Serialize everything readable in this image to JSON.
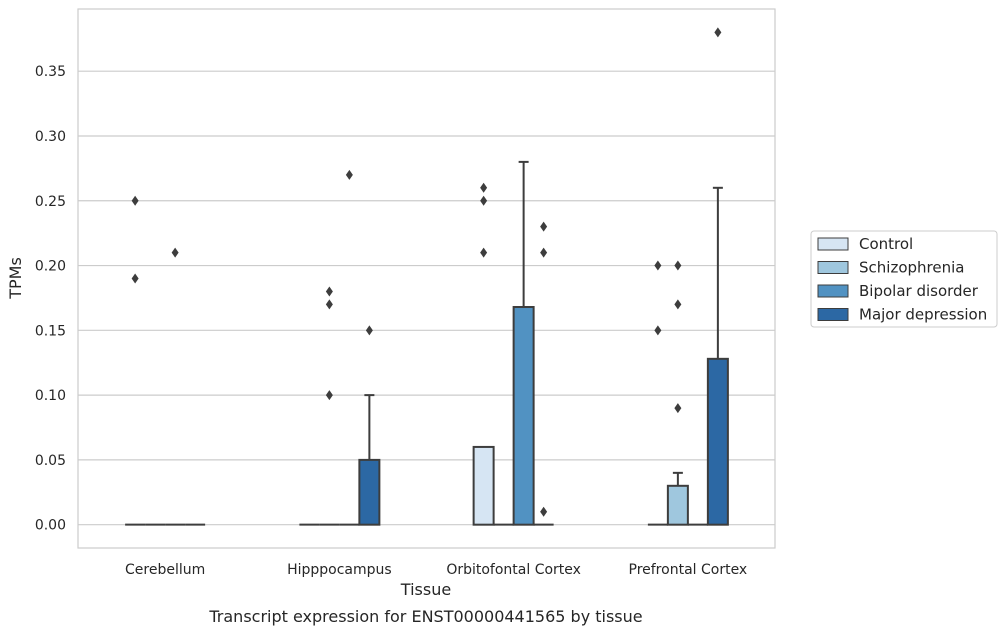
{
  "chart_data": {
    "type": "bar",
    "caption": "Transcript expression for ENST00000441565 by tissue",
    "xlabel": "Tissue",
    "ylabel": "TPMs",
    "ylim": [
      -0.018,
      0.398
    ],
    "yticks": [
      "0.00",
      "0.05",
      "0.10",
      "0.15",
      "0.20",
      "0.25",
      "0.30",
      "0.35"
    ],
    "grid": "horizontal",
    "legend_position": "right",
    "categories": [
      "Cerebellum",
      "Hipppocampus",
      "Orbitofontal Cortex",
      "Prefrontal Cortex"
    ],
    "series": [
      {
        "name": "Control",
        "color": "#d6e5f3",
        "values": [
          0.0,
          0.0,
          0.06,
          0.0
        ],
        "error_upper": [
          null,
          null,
          null,
          null
        ],
        "outliers": [
          [
            0.25,
            0.19
          ],
          [],
          [
            0.26,
            0.25,
            0.21
          ],
          [
            0.2,
            0.15
          ]
        ]
      },
      {
        "name": "Schizophrenia",
        "color": "#9fc7de",
        "values": [
          0.0,
          0.0,
          0.0,
          0.03
        ],
        "error_upper": [
          null,
          null,
          null,
          0.04
        ],
        "outliers": [
          [],
          [
            0.18,
            0.17,
            0.1
          ],
          [],
          [
            0.2,
            0.17,
            0.09
          ]
        ]
      },
      {
        "name": "Bipolar disorder",
        "color": "#5192c2",
        "values": [
          0.0,
          0.0,
          0.168,
          0.0
        ],
        "error_upper": [
          null,
          null,
          0.28,
          null
        ],
        "outliers": [
          [
            0.21
          ],
          [
            0.27
          ],
          [],
          []
        ]
      },
      {
        "name": "Major depression",
        "color": "#2c68a4",
        "values": [
          0.0,
          0.05,
          0.0,
          0.128
        ],
        "error_upper": [
          null,
          0.1,
          null,
          0.26
        ],
        "outliers": [
          [],
          [
            0.15
          ],
          [
            0.23,
            0.21,
            0.01
          ],
          [
            0.38
          ]
        ]
      }
    ]
  }
}
